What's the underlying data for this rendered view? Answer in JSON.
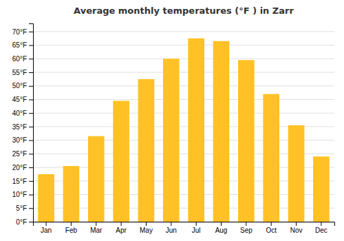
{
  "chart_data": {
    "type": "bar",
    "title": "Average monthly temperatures (°F ) in Zarr",
    "categories": [
      "Jan",
      "Feb",
      "Mar",
      "Apr",
      "May",
      "Jun",
      "Jul",
      "Aug",
      "Sep",
      "Oct",
      "Nov",
      "Dec"
    ],
    "values": [
      17.5,
      20.5,
      31.5,
      44.5,
      52.5,
      60.0,
      67.5,
      66.5,
      59.5,
      47.0,
      35.5,
      24.0
    ],
    "color": "#FFC125",
    "ylim": [
      0,
      73
    ],
    "yticks": [
      {
        "value": 0,
        "label": "0°F"
      },
      {
        "value": 5,
        "label": "5°F"
      },
      {
        "value": 10,
        "label": "10°F"
      },
      {
        "value": 15,
        "label": "15°F"
      },
      {
        "value": 20,
        "label": "20°F"
      },
      {
        "value": 25,
        "label": "25°F"
      },
      {
        "value": 30,
        "label": "30°F"
      },
      {
        "value": 35,
        "label": "35°F"
      },
      {
        "value": 40,
        "label": "40°F"
      },
      {
        "value": 45,
        "label": "45°F"
      },
      {
        "value": 50,
        "label": "50°F"
      },
      {
        "value": 55,
        "label": "55°F"
      },
      {
        "value": 60,
        "label": "60°F"
      },
      {
        "value": 65,
        "label": "65°F"
      },
      {
        "value": 70,
        "label": "70°F"
      }
    ],
    "grid": true
  }
}
